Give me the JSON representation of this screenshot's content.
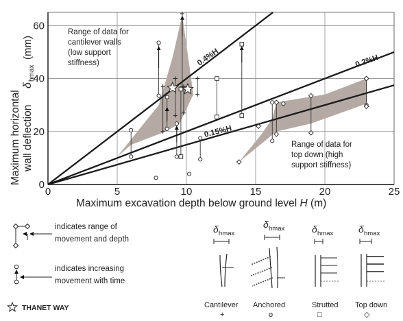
{
  "chart_data": {
    "type": "scatter",
    "xlabel_main": "Maximum excavation depth below ground level ",
    "xlabel_italic": "H",
    "xlabel_unit": " (m)",
    "ylabel_line1": "Maximum horizontal",
    "ylabel_line2": "wall deflection",
    "ylabel_delta": "δ",
    "ylabel_sub": "hmax",
    "ylabel_unit": "(mm)",
    "xlim": [
      0,
      25
    ],
    "ylim": [
      0,
      65
    ],
    "xticks": [
      0,
      5,
      10,
      15,
      20,
      25
    ],
    "yticks": [
      0,
      20,
      40,
      60
    ],
    "grid": true,
    "lines": [
      {
        "label": "0.4%H",
        "slope": 0.004
      },
      {
        "label": "0.2%H",
        "slope": 0.002
      },
      {
        "label": "0.15%H",
        "slope": 0.0015
      }
    ],
    "regions": [
      {
        "name": "cantilever",
        "label_lines": [
          "Range of data for",
          "cantilever walls",
          "(low support",
          "stiffness)"
        ],
        "polygon": [
          [
            5,
            10.5
          ],
          [
            8,
            30
          ],
          [
            9,
            48
          ],
          [
            9.7,
            64
          ],
          [
            10.5,
            34
          ],
          [
            9.5,
            23
          ],
          [
            8.5,
            20
          ],
          [
            6,
            15
          ]
        ]
      },
      {
        "name": "top down",
        "label_lines": [
          "Range of data for",
          "top down (high",
          "support stiffness)"
        ],
        "polygon": [
          [
            13.8,
            8.5
          ],
          [
            15.5,
            19.5
          ],
          [
            16.2,
            25
          ],
          [
            16.5,
            31
          ],
          [
            20,
            34
          ],
          [
            23,
            40
          ],
          [
            23,
            30.5
          ],
          [
            19,
            23
          ],
          [
            16.5,
            20
          ]
        ]
      }
    ],
    "series": [
      {
        "name": "Cantilever",
        "marker": "plus",
        "ranges": [
          {
            "x": [
              9.2,
              9.2
            ],
            "y": [
              26,
              40
            ]
          },
          {
            "x": [
              9.7,
              9.7
            ],
            "y": [
              37,
              64.5
            ]
          },
          {
            "x": [
              9.8,
              9.8
            ],
            "y": [
              27,
              37
            ]
          },
          {
            "x": [
              10.8,
              10.8
            ],
            "y": [
              34,
              40
            ]
          },
          {
            "x": [
              8.3,
              8.3
            ],
            "y": [
              20,
              37
            ]
          }
        ]
      },
      {
        "name": "Anchored",
        "marker": "circle",
        "ranges": [
          {
            "x": [
              8.0,
              8.0
            ],
            "y": [
              33.5,
              53.5
            ]
          },
          {
            "x": [
              6.0,
              6.0
            ],
            "y": [
              10.5,
              20.5
            ]
          },
          {
            "x": [
              8.6,
              8.6
            ],
            "y": [
              21,
              33
            ]
          },
          {
            "x": [
              9.3,
              9.3
            ],
            "y": [
              10.5,
              23
            ]
          },
          {
            "x": [
              11.0,
              11.0
            ],
            "y": [
              9.5,
              17.5
            ]
          },
          {
            "x": [
              16.2,
              16.2
            ],
            "y": [
              16.5,
              31
            ]
          },
          {
            "x": [
              23.0,
              23.0
            ],
            "y": [
              30,
              40
            ]
          }
        ],
        "points": [
          {
            "x": 7.8,
            "y": 2.5
          },
          {
            "x": 10.2,
            "y": 4
          },
          {
            "x": 17,
            "y": 30.5
          }
        ]
      },
      {
        "name": "Strutted",
        "marker": "square",
        "ranges": [
          {
            "x": [
              12.2,
              12.2
            ],
            "y": [
              25.5,
              40
            ]
          },
          {
            "x": [
              14.0,
              14.0
            ],
            "y": [
              26,
              53
            ]
          },
          {
            "x": [
              9.6,
              9.6
            ],
            "y": [
              10.5,
              36
            ]
          }
        ]
      },
      {
        "name": "Top down",
        "marker": "diamond",
        "ranges": [
          {
            "x": [
              19,
              19
            ],
            "y": [
              19.5,
              33.5
            ]
          },
          {
            "x": [
              16.5,
              16.5
            ],
            "y": [
              19,
              31
            ]
          },
          {
            "x": [
              23,
              23
            ],
            "y": [
              29.5,
              40
            ]
          }
        ],
        "points": [
          {
            "x": 13.8,
            "y": 8.5
          },
          {
            "x": 15.2,
            "y": 22
          }
        ]
      },
      {
        "name": "THANET WAY",
        "marker": "star",
        "points": [
          {
            "x": 9.0,
            "y": 36.5
          },
          {
            "x": 10.1,
            "y": 36
          }
        ]
      }
    ]
  },
  "legend": {
    "range_text_line1": "indicates range of",
    "range_text_line2": "movement and depth",
    "time_text_line1": "indicates increasing",
    "time_text_line2": "movement with time",
    "thanet_label": "THANET WAY",
    "wall_types": [
      {
        "name": "Cantilever",
        "delta": "δ",
        "sub": "hmax",
        "marker_glyph": "+"
      },
      {
        "name": "Anchored",
        "delta": "δ",
        "sub": "hmax",
        "marker_glyph": "o"
      },
      {
        "name": "Strutted",
        "delta": "δ",
        "sub": "hmax",
        "marker_glyph": "□"
      },
      {
        "name": "Top down",
        "delta": "δ",
        "sub": "hmax",
        "marker_glyph": "◇"
      }
    ]
  },
  "colors": {
    "region": "#b5aaa3",
    "line": "#1a1a1a",
    "grid": "#8c8c8c",
    "text": "#222222"
  }
}
